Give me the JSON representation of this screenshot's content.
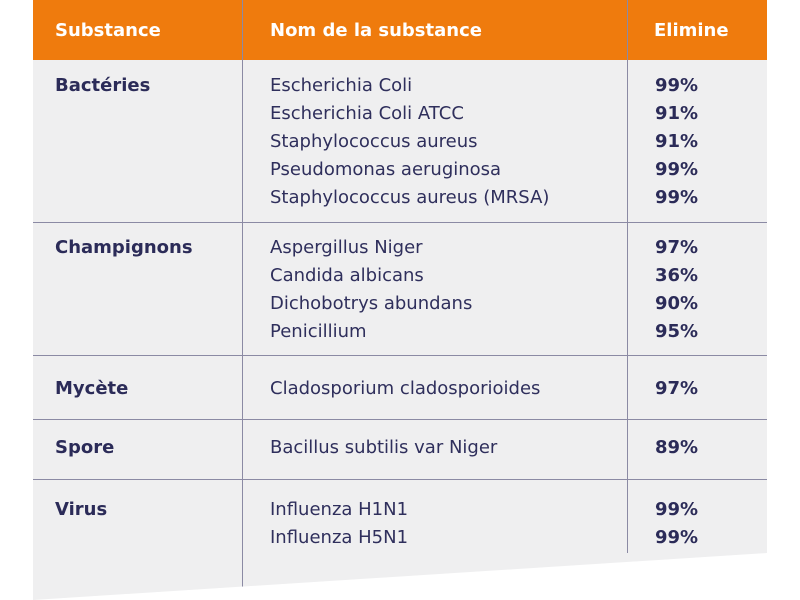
{
  "header": {
    "substance": "Substance",
    "name": "Nom de la substance",
    "elimine": "Elimine"
  },
  "groups": [
    {
      "category": "Bactéries",
      "rows": [
        {
          "name": "Escherichia Coli",
          "value": "99%"
        },
        {
          "name": "Escherichia Coli ATCC",
          "value": "91%"
        },
        {
          "name": "Staphylococcus aureus",
          "value": "91%"
        },
        {
          "name": "Pseudomonas aeruginosa",
          "value": "99%"
        },
        {
          "name": "Staphylococcus aureus (MRSA)",
          "value": "99%"
        }
      ]
    },
    {
      "category": "Champignons",
      "rows": [
        {
          "name": "Aspergillus Niger",
          "value": "97%"
        },
        {
          "name": "Candida albicans",
          "value": "36%"
        },
        {
          "name": "Dichobotrys abundans",
          "value": "90%"
        },
        {
          "name": "Penicillium",
          "value": "95%"
        }
      ]
    },
    {
      "category": "Mycète",
      "rows": [
        {
          "name": "Cladosporium cladosporioides",
          "value": "97%"
        }
      ]
    },
    {
      "category": "Spore",
      "rows": [
        {
          "name": "Bacillus subtilis var Niger",
          "value": "89%"
        }
      ]
    },
    {
      "category": "Virus",
      "rows": [
        {
          "name": "Influenza H1N1",
          "value": "99%"
        },
        {
          "name": "Influenza H5N1",
          "value": "99%"
        }
      ]
    }
  ],
  "colors": {
    "header_bg": "#ef7b0d",
    "panel_bg": "#efeff0",
    "text": "#2b2b58",
    "rule": "#8b8aa4"
  }
}
